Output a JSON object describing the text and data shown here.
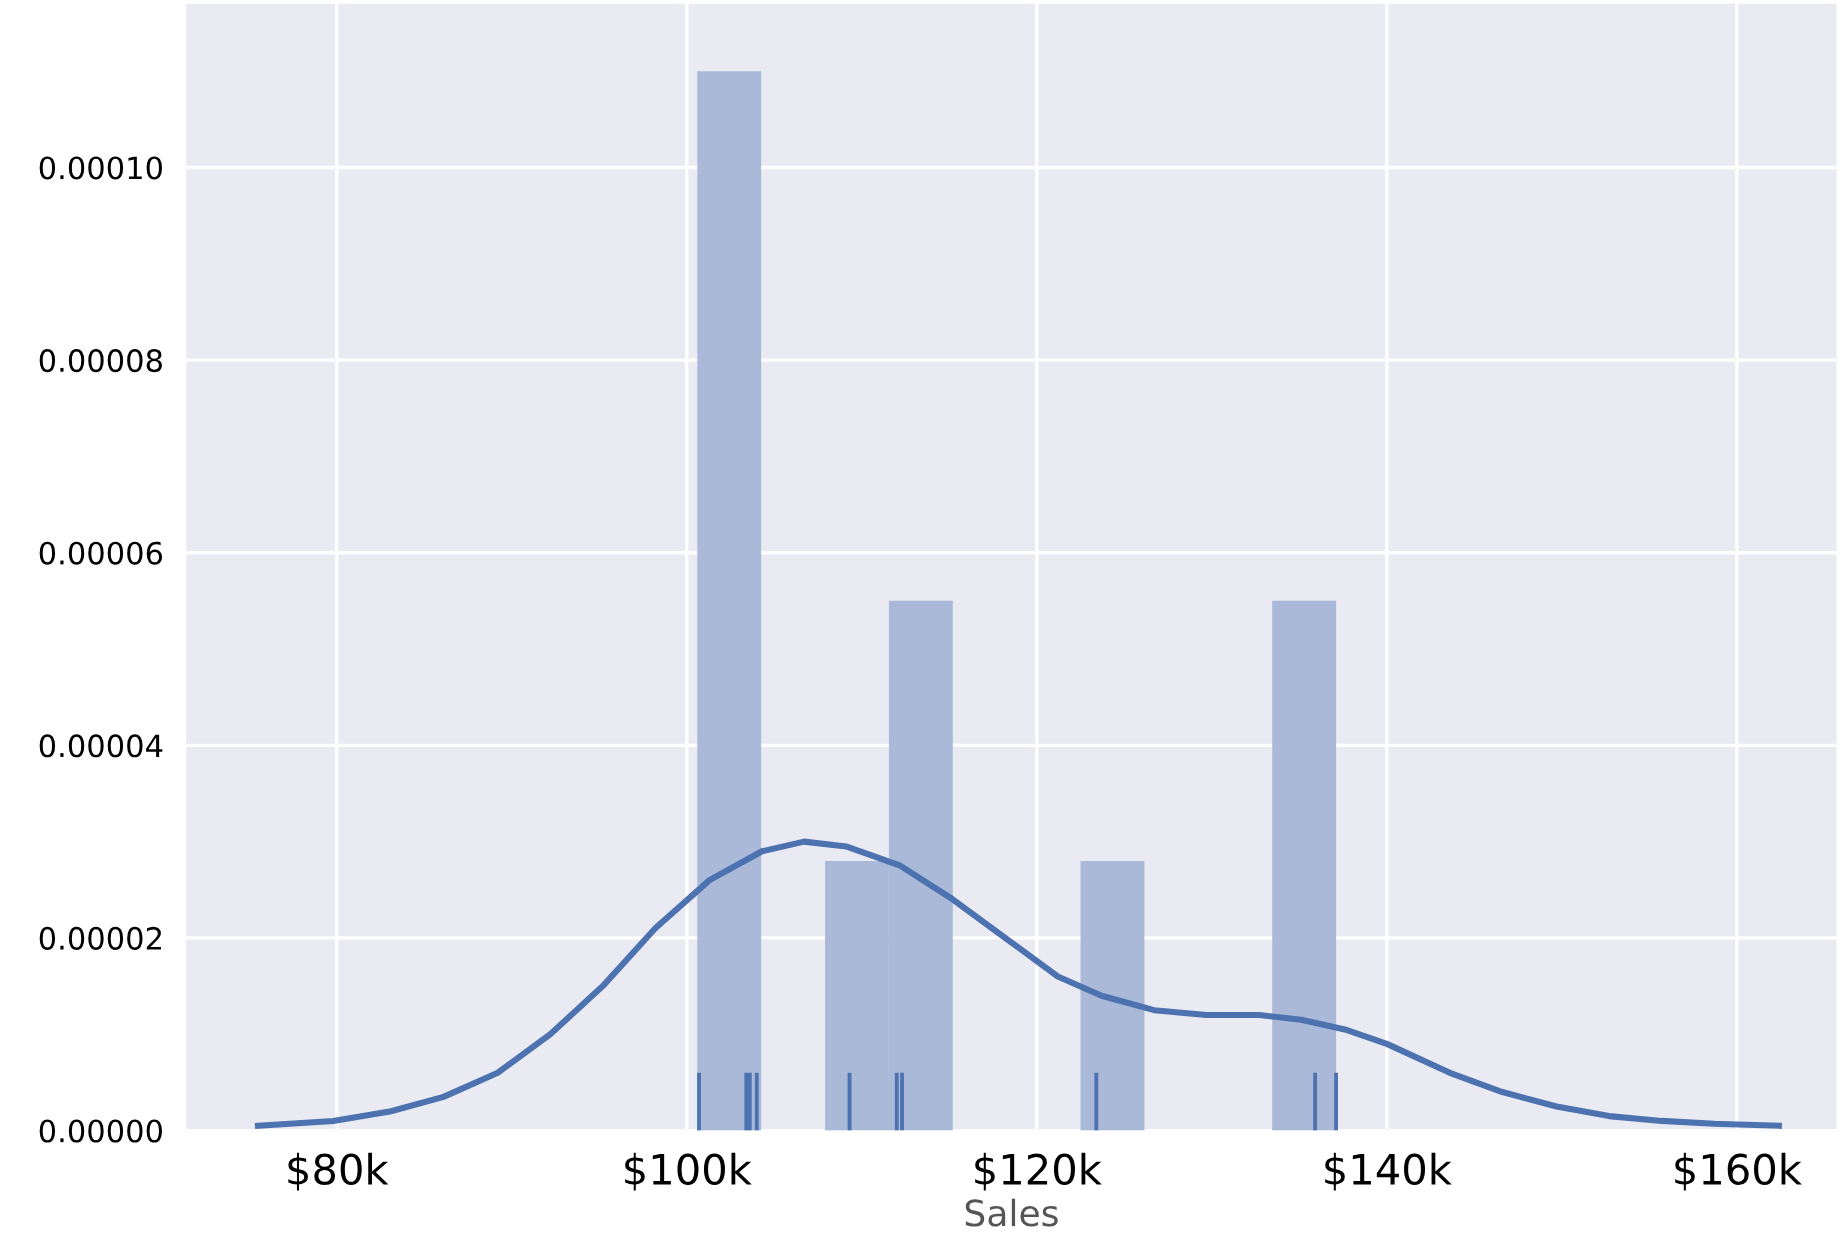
{
  "chart_data": {
    "type": "histogram",
    "xlabel": "Sales",
    "xlim": [
      71400,
      165700
    ],
    "ylim": [
      0,
      0.000117
    ],
    "xticks": [
      {
        "value": 80000,
        "label": "$80k"
      },
      {
        "value": 100000,
        "label": "$100k"
      },
      {
        "value": 120000,
        "label": "$120k"
      },
      {
        "value": 140000,
        "label": "$140k"
      },
      {
        "value": 160000,
        "label": "$160k"
      }
    ],
    "yticks": [
      {
        "value": 0,
        "label": "0.00000"
      },
      {
        "value": 2e-05,
        "label": "0.00002"
      },
      {
        "value": 4e-05,
        "label": "0.00004"
      },
      {
        "value": 6e-05,
        "label": "0.00006"
      },
      {
        "value": 8e-05,
        "label": "0.00008"
      },
      {
        "value": 0.0001,
        "label": "0.00010"
      }
    ],
    "grid": true,
    "series": [
      {
        "color": "#a9b9d7",
        "bins": [
          100600,
          104250,
          107900,
          111550,
          115200,
          118850,
          122500,
          126150,
          129800,
          133450,
          137100
        ],
        "values": [
          0.00011,
          0,
          2.8e-05,
          5.5e-05,
          0,
          0,
          2.8e-05,
          0,
          0,
          5.5e-05
        ]
      },
      {
        "type": "line",
        "color": "#4c72b0",
        "line_style": "solid",
        "marker": "none",
        "x": [
          75500,
          79800,
          83100,
          86100,
          89200,
          92200,
          95200,
          98200,
          101300,
          104300,
          106700,
          109100,
          112200,
          115200,
          118200,
          121200,
          123700,
          126700,
          129700,
          132700,
          135100,
          137600,
          140000,
          143600,
          146600,
          149700,
          152700,
          155700,
          158700,
          162400
        ],
        "values": [
          5e-07,
          1e-06,
          2e-06,
          3.5e-06,
          6e-06,
          1e-05,
          1.5e-05,
          2.1e-05,
          2.6e-05,
          2.9e-05,
          3e-05,
          2.95e-05,
          2.75e-05,
          2.4e-05,
          2e-05,
          1.6e-05,
          1.4e-05,
          1.25e-05,
          1.2e-05,
          1.2e-05,
          1.15e-05,
          1.05e-05,
          9e-06,
          6e-06,
          4e-06,
          2.5e-06,
          1.5e-06,
          1e-06,
          7e-07,
          5e-07
        ]
      },
      {
        "type": "bar",
        "color": "#4c72b0",
        "x": [
          100700,
          103400,
          103600,
          104000,
          109300,
          112000,
          112300,
          123400,
          135900,
          137100
        ],
        "values": [
          6e-06,
          6e-06,
          6e-06,
          6e-06,
          6e-06,
          6e-06,
          6e-06,
          6e-06,
          6e-06,
          6e-06
        ]
      }
    ]
  }
}
